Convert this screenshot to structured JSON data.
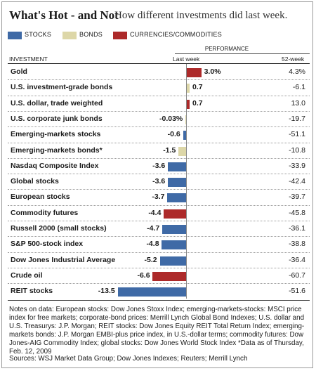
{
  "title": "What's Hot - and Not",
  "subtitle": "How different investments did last week.",
  "legend": [
    {
      "label": "STOCKS",
      "color": "#3f6aa6"
    },
    {
      "label": "BONDS",
      "color": "#ddd7a8"
    },
    {
      "label": "CURRENCIES/COMMODITIES",
      "color": "#ad2a2a"
    }
  ],
  "header": {
    "performance": "PERFORMANCE",
    "investment": "INVESTMENT",
    "last_week": "Last week",
    "week52": "52-week"
  },
  "chart_data": {
    "type": "bar",
    "orientation": "horizontal",
    "unit": "%",
    "categories": [
      "Gold",
      "U.S. investment-grade bonds",
      "U.S. dollar, trade weighted",
      "U.S. corporate junk bonds",
      "Emerging-markets stocks",
      "Emerging-markets bonds*",
      "Nasdaq Composite Index",
      "Global stocks",
      "European stocks",
      "Commodity futures",
      "Russell 2000 (small stocks)",
      "S&P 500-stock index",
      "Dow Jones Industrial Average",
      "Crude oil",
      "REIT stocks"
    ],
    "asset_class": [
      "currencies_commodities",
      "bonds",
      "currencies_commodities",
      "bonds",
      "stocks",
      "bonds",
      "stocks",
      "stocks",
      "stocks",
      "currencies_commodities",
      "stocks",
      "stocks",
      "stocks",
      "currencies_commodities",
      "stocks"
    ],
    "values": [
      3.0,
      0.7,
      0.7,
      -0.03,
      -0.6,
      -1.5,
      -3.6,
      -3.6,
      -3.7,
      -4.4,
      -4.7,
      -4.8,
      -5.2,
      -6.6,
      -13.5
    ],
    "value_labels": [
      "3.0%",
      "0.7",
      "0.7",
      "-0.03%",
      "-0.6",
      "-1.5",
      "-3.6",
      "-3.6",
      "-3.7",
      "-4.4",
      "-4.7",
      "-4.8",
      "-5.2",
      "-6.6",
      "-13.5"
    ],
    "week52": [
      "4.3%",
      "-6.1",
      "13.0",
      "-19.7",
      "-51.1",
      "-10.8",
      "-33.9",
      "-42.4",
      "-39.7",
      "-45.8",
      "-36.1",
      "-38.8",
      "-36.4",
      "-60.7",
      "-51.6"
    ],
    "colors": {
      "stocks": "#3f6aa6",
      "bonds": "#ddd7a8",
      "currencies_commodities": "#ad2a2a"
    }
  },
  "notes": "Notes on data: European stocks: Dow Jones Stoxx Index; emerging-markets-stocks: MSCI price index for free markets; corporate-bond prices: Merrill Lynch Global Bond Indexes; U.S. dollar and U.S. Treasurys: J.P. Morgan; REIT stocks: Dow Jones Equity REIT Total Return Index; emerging-markets bonds: J.P. Morgan EMBI-plus price index, in U.S.-dollar terms; commodity futures: Dow Jones-AIG Commodity Index; global stocks: Dow Jones World Stock Index   *Data as of Thursday, Feb. 12, 2009",
  "sources": "Sources: WSJ Market Data Group; Dow Jones Indexes; Reuters; Merrill Lynch"
}
